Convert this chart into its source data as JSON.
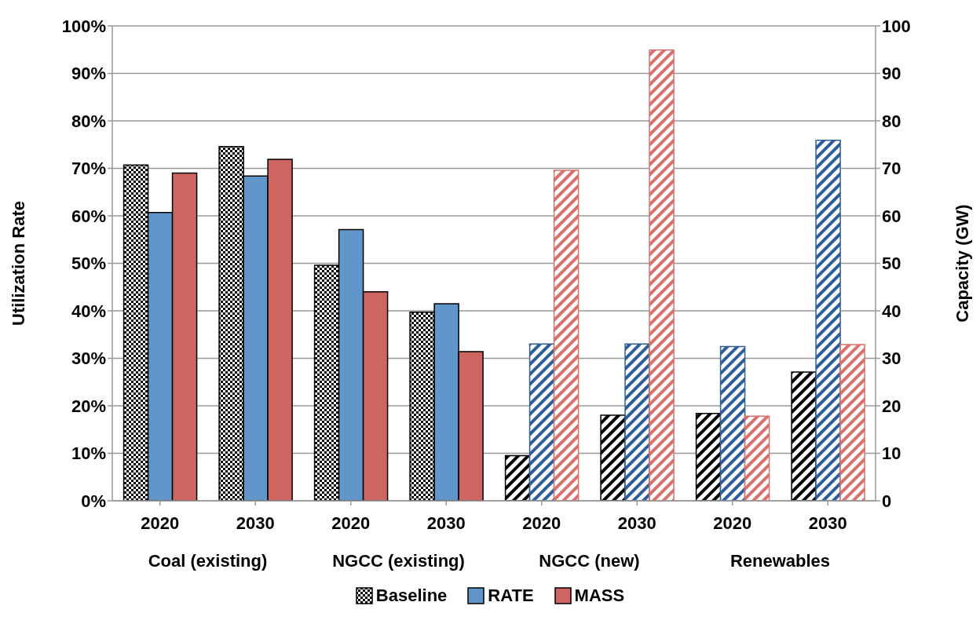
{
  "chart_data": {
    "type": "bar",
    "ylabel": "Utilization Rate",
    "y2label": "Capacity (GW)",
    "categories": [
      "2020",
      "2030",
      "2020",
      "2030",
      "2020",
      "2030",
      "2020",
      "2030"
    ],
    "annotations": [
      "Coal (existing)",
      "NGCC (existing)",
      "NGCC (new)",
      "Renewables"
    ],
    "series": [
      {
        "name": "Baseline",
        "color": "#000000",
        "axis": "y",
        "values": [
          70.7,
          74.6,
          49.6,
          39.7,
          null,
          null,
          null,
          null
        ]
      },
      {
        "name": "RATE",
        "color": "#6096c9",
        "axis": "y",
        "values": [
          60.7,
          68.4,
          57.1,
          41.5,
          null,
          null,
          null,
          null
        ]
      },
      {
        "name": "MASS",
        "color": "#cd6660",
        "axis": "y",
        "values": [
          69.0,
          71.9,
          44.0,
          31.4,
          null,
          null,
          null,
          null
        ]
      },
      {
        "color": "#000000",
        "axis": "y2",
        "values": [
          null,
          null,
          null,
          null,
          9.5,
          18.0,
          18.4,
          27.1
        ]
      },
      {
        "color": "#2e5e99",
        "axis": "y2",
        "values": [
          null,
          null,
          null,
          null,
          33.0,
          33.0,
          32.5,
          75.9
        ]
      },
      {
        "color": "#d8706b",
        "axis": "y2",
        "values": [
          null,
          null,
          null,
          null,
          69.6,
          94.9,
          17.8,
          32.9
        ]
      }
    ],
    "ylim": [
      0,
      100
    ],
    "yticks": [
      {
        "value": 0,
        "label": "0%"
      },
      {
        "value": 10,
        "label": "10%"
      },
      {
        "value": 20,
        "label": "20%"
      },
      {
        "value": 30,
        "label": "30%"
      },
      {
        "value": 40,
        "label": "40%"
      },
      {
        "value": 50,
        "label": "50%"
      },
      {
        "value": 60,
        "label": "60%"
      },
      {
        "value": 70,
        "label": "70%"
      },
      {
        "value": 80,
        "label": "80%"
      },
      {
        "value": 90,
        "label": "90%"
      },
      {
        "value": 100,
        "label": "100%"
      }
    ],
    "y2lim": [
      0,
      100
    ],
    "y2ticks": [
      0,
      10,
      20,
      30,
      40,
      50,
      60,
      70,
      80,
      90,
      100
    ],
    "grid": "y",
    "legend": "bottom"
  }
}
